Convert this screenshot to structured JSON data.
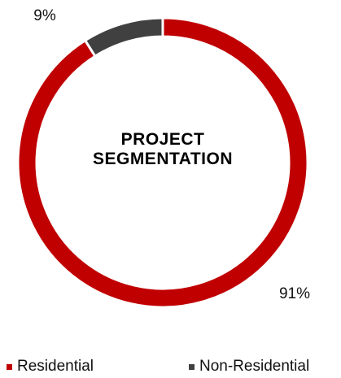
{
  "chart_data": {
    "type": "donut",
    "title": "PROJECT SEGMENTATION",
    "categories": [
      "Residential",
      "Non-Residential"
    ],
    "values": [
      91,
      9
    ],
    "value_labels": [
      "91%",
      "9%"
    ],
    "colors": [
      "#c00000",
      "#404040"
    ],
    "legend": "bottom"
  }
}
